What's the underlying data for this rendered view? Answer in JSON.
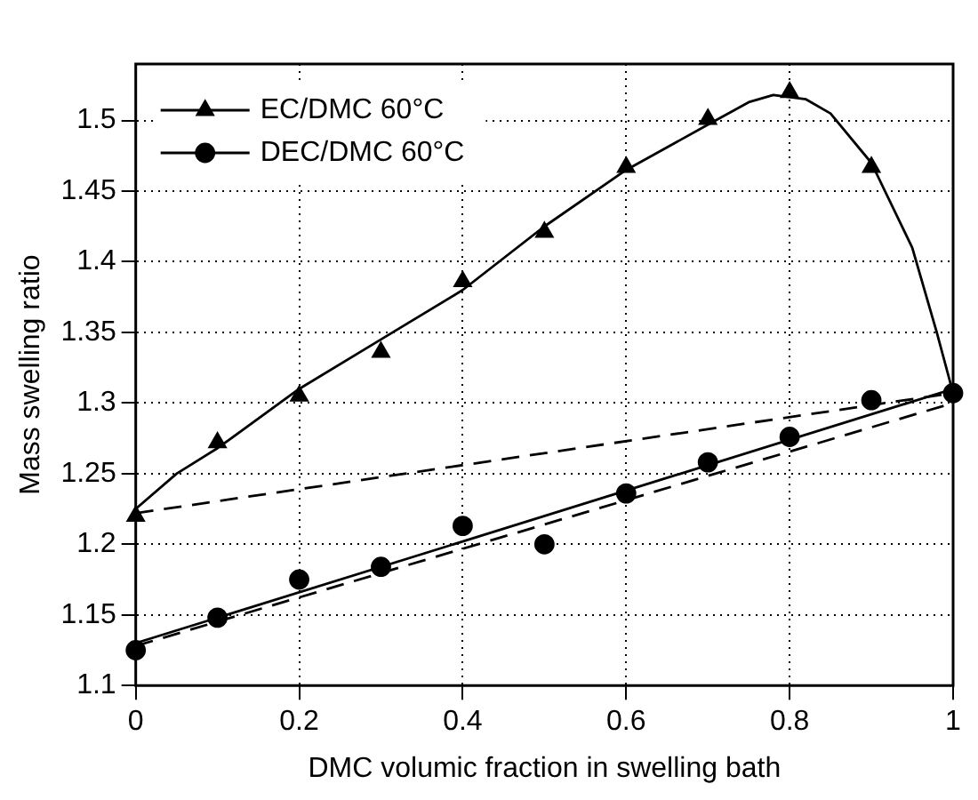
{
  "chart_data": {
    "type": "scatter",
    "xlabel": "DMC volumic fraction in swelling bath",
    "ylabel": "Mass swelling ratio",
    "xlim": [
      0,
      1
    ],
    "xticks": [
      0,
      0.2,
      0.4,
      0.6,
      0.8,
      1
    ],
    "ylim": [
      1.1,
      1.54
    ],
    "yticks": [
      1.1,
      1.15,
      1.2,
      1.25,
      1.3,
      1.35,
      1.4,
      1.45,
      1.5
    ],
    "grid": true,
    "legend": "top left",
    "x": [
      0,
      0.1,
      0.2,
      0.3,
      0.4,
      0.5,
      0.6,
      0.7,
      0.8,
      0.9,
      1
    ],
    "series": [
      {
        "name": "EC/DMC 60°C",
        "color": "#000000",
        "marker": "triangle",
        "values": [
          1.22,
          1.272,
          1.305,
          1.336,
          1.386,
          1.421,
          1.467,
          1.501,
          1.52,
          1.467,
          null
        ]
      },
      {
        "name": "DEC/DMC 60°C",
        "color": "#000000",
        "marker": "circle",
        "values": [
          1.125,
          1.148,
          1.175,
          1.184,
          1.213,
          1.2,
          1.236,
          1.258,
          1.276,
          1.302,
          1.307
        ]
      },
      {
        "type": "line",
        "color": "#000000",
        "marker": "none",
        "line_style": "solid",
        "x": [
          0,
          0.05,
          0.1,
          0.2,
          0.3,
          0.4,
          0.5,
          0.6,
          0.7,
          0.75,
          0.78,
          0.82,
          0.85,
          0.9,
          0.95,
          0.98,
          1
        ],
        "values": [
          1.225,
          1.25,
          1.268,
          1.31,
          1.345,
          1.38,
          1.425,
          1.465,
          1.497,
          1.513,
          1.518,
          1.515,
          1.505,
          1.47,
          1.41,
          1.35,
          1.307
        ]
      },
      {
        "type": "line",
        "color": "#000000",
        "marker": "none",
        "line_style": "solid",
        "x": [
          0,
          1
        ],
        "values": [
          1.13,
          1.31
        ]
      },
      {
        "type": "line",
        "color": "#000000",
        "marker": "none",
        "line_style": "dashed",
        "x": [
          0,
          1
        ],
        "values": [
          1.222,
          1.307
        ]
      },
      {
        "type": "line",
        "color": "#000000",
        "marker": "none",
        "line_style": "dashed",
        "x": [
          0,
          1
        ],
        "values": [
          1.128,
          1.3
        ]
      }
    ]
  }
}
